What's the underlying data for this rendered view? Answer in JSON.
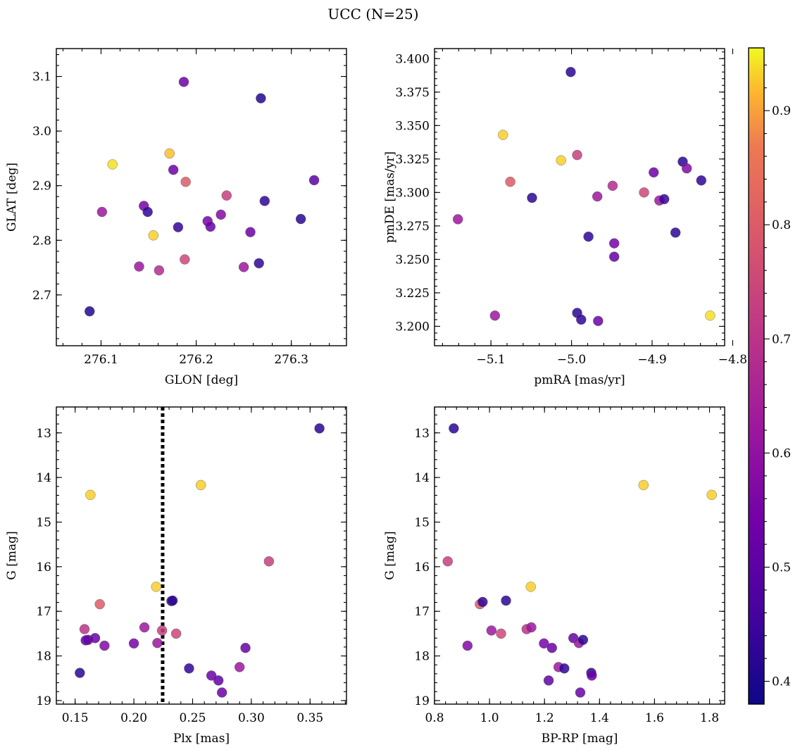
{
  "title": "UCC (N=25)",
  "colorbar": {
    "range": [
      0.38,
      0.955
    ],
    "ticks": [
      0.4,
      0.5,
      0.6,
      0.7,
      0.8,
      0.9
    ],
    "tick_labels": [
      "0.4",
      "0.5",
      "0.6",
      "0.7",
      "0.8",
      "0.9"
    ],
    "colormap": "plasma"
  },
  "chart_data": [
    {
      "type": "scatter",
      "xlabel": "GLON [deg]",
      "ylabel": "GLAT [deg]",
      "xlim": [
        276.053,
        276.358
      ],
      "ylim": [
        2.607,
        3.151
      ],
      "xticks": [
        276.1,
        276.2,
        276.3
      ],
      "xtick_labels": [
        "276.1",
        "276.2",
        "276.3"
      ],
      "yticks": [
        2.7,
        2.8,
        2.9,
        3.0,
        3.1
      ],
      "ytick_labels": [
        "2.7",
        "2.8",
        "2.9",
        "3.0",
        "3.1"
      ],
      "y_inverted": false,
      "points": [
        {
          "x": 276.088,
          "y": 2.67,
          "c": 0.41
        },
        {
          "x": 276.101,
          "y": 2.852,
          "c": 0.62
        },
        {
          "x": 276.112,
          "y": 2.939,
          "c": 0.94
        },
        {
          "x": 276.14,
          "y": 2.752,
          "c": 0.62
        },
        {
          "x": 276.145,
          "y": 2.863,
          "c": 0.55
        },
        {
          "x": 276.149,
          "y": 2.852,
          "c": 0.43
        },
        {
          "x": 276.155,
          "y": 2.809,
          "c": 0.93
        },
        {
          "x": 276.161,
          "y": 2.745,
          "c": 0.68
        },
        {
          "x": 276.172,
          "y": 2.959,
          "c": 0.92
        },
        {
          "x": 276.176,
          "y": 2.929,
          "c": 0.53
        },
        {
          "x": 276.181,
          "y": 2.824,
          "c": 0.44
        },
        {
          "x": 276.187,
          "y": 3.09,
          "c": 0.53
        },
        {
          "x": 276.188,
          "y": 2.765,
          "c": 0.75
        },
        {
          "x": 276.189,
          "y": 2.907,
          "c": 0.8
        },
        {
          "x": 276.212,
          "y": 2.835,
          "c": 0.55
        },
        {
          "x": 276.215,
          "y": 2.825,
          "c": 0.52
        },
        {
          "x": 276.226,
          "y": 2.847,
          "c": 0.57
        },
        {
          "x": 276.232,
          "y": 2.882,
          "c": 0.73
        },
        {
          "x": 276.25,
          "y": 2.751,
          "c": 0.62
        },
        {
          "x": 276.257,
          "y": 2.815,
          "c": 0.53
        },
        {
          "x": 276.266,
          "y": 2.758,
          "c": 0.43
        },
        {
          "x": 276.268,
          "y": 3.06,
          "c": 0.41
        },
        {
          "x": 276.272,
          "y": 2.872,
          "c": 0.43
        },
        {
          "x": 276.31,
          "y": 2.839,
          "c": 0.42
        },
        {
          "x": 276.324,
          "y": 2.91,
          "c": 0.5
        }
      ]
    },
    {
      "type": "scatter",
      "xlabel": "pmRA [mas/yr]",
      "ylabel": "pmDE [mas/yr]",
      "xlim": [
        -5.17,
        -4.81
      ],
      "ylim": [
        3.1855,
        3.4075
      ],
      "xticks": [
        -5.1,
        -5.0,
        -4.9,
        -4.8
      ],
      "xtick_labels": [
        "−5.1",
        "−5.0",
        "−4.9",
        "−4.8"
      ],
      "yticks": [
        3.2,
        3.225,
        3.25,
        3.275,
        3.3,
        3.325,
        3.35,
        3.375,
        3.4
      ],
      "ytick_labels": [
        "3.200",
        "3.225",
        "3.250",
        "3.275",
        "3.300",
        "3.325",
        "3.350",
        "3.375",
        "3.400"
      ],
      "y_inverted": false,
      "points": [
        {
          "x": -5.141,
          "y": 3.28,
          "c": 0.62
        },
        {
          "x": -5.095,
          "y": 3.208,
          "c": 0.62
        },
        {
          "x": -5.085,
          "y": 3.343,
          "c": 0.93
        },
        {
          "x": -5.076,
          "y": 3.308,
          "c": 0.8
        },
        {
          "x": -5.049,
          "y": 3.296,
          "c": 0.42
        },
        {
          "x": -5.013,
          "y": 3.324,
          "c": 0.93
        },
        {
          "x": -5.001,
          "y": 3.39,
          "c": 0.42
        },
        {
          "x": -4.993,
          "y": 3.21,
          "c": 0.42
        },
        {
          "x": -4.993,
          "y": 3.328,
          "c": 0.73
        },
        {
          "x": -4.988,
          "y": 3.205,
          "c": 0.43
        },
        {
          "x": -4.979,
          "y": 3.267,
          "c": 0.43
        },
        {
          "x": -4.968,
          "y": 3.297,
          "c": 0.62
        },
        {
          "x": -4.967,
          "y": 3.204,
          "c": 0.52
        },
        {
          "x": -4.949,
          "y": 3.305,
          "c": 0.68
        },
        {
          "x": -4.947,
          "y": 3.262,
          "c": 0.55
        },
        {
          "x": -4.947,
          "y": 3.252,
          "c": 0.51
        },
        {
          "x": -4.91,
          "y": 3.3,
          "c": 0.75
        },
        {
          "x": -4.898,
          "y": 3.315,
          "c": 0.53
        },
        {
          "x": -4.891,
          "y": 3.294,
          "c": 0.62
        },
        {
          "x": -4.885,
          "y": 3.295,
          "c": 0.44
        },
        {
          "x": -4.871,
          "y": 3.27,
          "c": 0.42
        },
        {
          "x": -4.862,
          "y": 3.323,
          "c": 0.42
        },
        {
          "x": -4.857,
          "y": 3.318,
          "c": 0.57
        },
        {
          "x": -4.839,
          "y": 3.309,
          "c": 0.43
        },
        {
          "x": -4.828,
          "y": 3.208,
          "c": 0.94
        }
      ]
    },
    {
      "type": "scatter",
      "xlabel": "Plx [mas]",
      "ylabel": "G [mag]",
      "xlim": [
        0.134,
        0.381
      ],
      "ylim": [
        12.42,
        19.08
      ],
      "xticks": [
        0.15,
        0.2,
        0.25,
        0.3,
        0.35
      ],
      "xtick_labels": [
        "0.15",
        "0.20",
        "0.25",
        "0.30",
        "0.35"
      ],
      "yticks": [
        13,
        14,
        15,
        16,
        17,
        18,
        19
      ],
      "ytick_labels": [
        "13",
        "14",
        "15",
        "16",
        "17",
        "18",
        "19"
      ],
      "y_inverted": true,
      "vline": {
        "x": 0.2245,
        "style": "dotted"
      },
      "points": [
        {
          "x": 0.154,
          "y": 18.38,
          "c": 0.42
        },
        {
          "x": 0.158,
          "y": 17.4,
          "c": 0.7
        },
        {
          "x": 0.159,
          "y": 17.65,
          "c": 0.5
        },
        {
          "x": 0.161,
          "y": 17.64,
          "c": 0.52
        },
        {
          "x": 0.163,
          "y": 14.39,
          "c": 0.93
        },
        {
          "x": 0.167,
          "y": 17.6,
          "c": 0.52
        },
        {
          "x": 0.171,
          "y": 16.84,
          "c": 0.8
        },
        {
          "x": 0.175,
          "y": 17.77,
          "c": 0.57
        },
        {
          "x": 0.2,
          "y": 17.72,
          "c": 0.55
        },
        {
          "x": 0.209,
          "y": 17.36,
          "c": 0.62
        },
        {
          "x": 0.219,
          "y": 16.45,
          "c": 0.93
        },
        {
          "x": 0.22,
          "y": 17.71,
          "c": 0.62
        },
        {
          "x": 0.224,
          "y": 17.43,
          "c": 0.73
        },
        {
          "x": 0.232,
          "y": 16.77,
          "c": 0.42
        },
        {
          "x": 0.233,
          "y": 16.76,
          "c": 0.43
        },
        {
          "x": 0.236,
          "y": 17.5,
          "c": 0.75
        },
        {
          "x": 0.247,
          "y": 18.28,
          "c": 0.43
        },
        {
          "x": 0.257,
          "y": 14.17,
          "c": 0.93
        },
        {
          "x": 0.266,
          "y": 18.44,
          "c": 0.53
        },
        {
          "x": 0.272,
          "y": 18.55,
          "c": 0.51
        },
        {
          "x": 0.275,
          "y": 18.82,
          "c": 0.52
        },
        {
          "x": 0.29,
          "y": 18.25,
          "c": 0.62
        },
        {
          "x": 0.295,
          "y": 17.82,
          "c": 0.52
        },
        {
          "x": 0.315,
          "y": 15.88,
          "c": 0.73
        },
        {
          "x": 0.358,
          "y": 12.9,
          "c": 0.42
        }
      ]
    },
    {
      "type": "scatter",
      "xlabel": "BP-RP [mag]",
      "ylabel": "G [mag]",
      "xlim": [
        0.8,
        1.855
      ],
      "ylim": [
        12.42,
        19.08
      ],
      "xticks": [
        0.8,
        1.0,
        1.2,
        1.4,
        1.6,
        1.8
      ],
      "xtick_labels": [
        "0.8",
        "1.0",
        "1.2",
        "1.4",
        "1.6",
        "1.8"
      ],
      "yticks": [
        13,
        14,
        15,
        16,
        17,
        18,
        19
      ],
      "ytick_labels": [
        "13",
        "14",
        "15",
        "16",
        "17",
        "18",
        "19"
      ],
      "y_inverted": true,
      "points": [
        {
          "x": 0.848,
          "y": 15.88,
          "c": 0.73
        },
        {
          "x": 0.87,
          "y": 12.9,
          "c": 0.42
        },
        {
          "x": 0.92,
          "y": 17.77,
          "c": 0.57
        },
        {
          "x": 0.965,
          "y": 16.84,
          "c": 0.8
        },
        {
          "x": 0.975,
          "y": 16.79,
          "c": 0.43
        },
        {
          "x": 1.007,
          "y": 17.43,
          "c": 0.62
        },
        {
          "x": 1.042,
          "y": 17.5,
          "c": 0.75
        },
        {
          "x": 1.06,
          "y": 16.76,
          "c": 0.42
        },
        {
          "x": 1.135,
          "y": 17.4,
          "c": 0.7
        },
        {
          "x": 1.15,
          "y": 16.45,
          "c": 0.93
        },
        {
          "x": 1.152,
          "y": 17.36,
          "c": 0.62
        },
        {
          "x": 1.198,
          "y": 17.72,
          "c": 0.55
        },
        {
          "x": 1.215,
          "y": 18.55,
          "c": 0.51
        },
        {
          "x": 1.227,
          "y": 17.82,
          "c": 0.52
        },
        {
          "x": 1.251,
          "y": 18.25,
          "c": 0.62
        },
        {
          "x": 1.272,
          "y": 18.28,
          "c": 0.43
        },
        {
          "x": 1.305,
          "y": 17.6,
          "c": 0.52
        },
        {
          "x": 1.325,
          "y": 17.71,
          "c": 0.62
        },
        {
          "x": 1.33,
          "y": 18.82,
          "c": 0.52
        },
        {
          "x": 1.34,
          "y": 17.64,
          "c": 0.42
        },
        {
          "x": 1.37,
          "y": 18.38,
          "c": 0.42
        },
        {
          "x": 1.372,
          "y": 18.44,
          "c": 0.53
        },
        {
          "x": 1.56,
          "y": 14.17,
          "c": 0.93
        },
        {
          "x": 1.808,
          "y": 14.39,
          "c": 0.93
        }
      ]
    }
  ]
}
